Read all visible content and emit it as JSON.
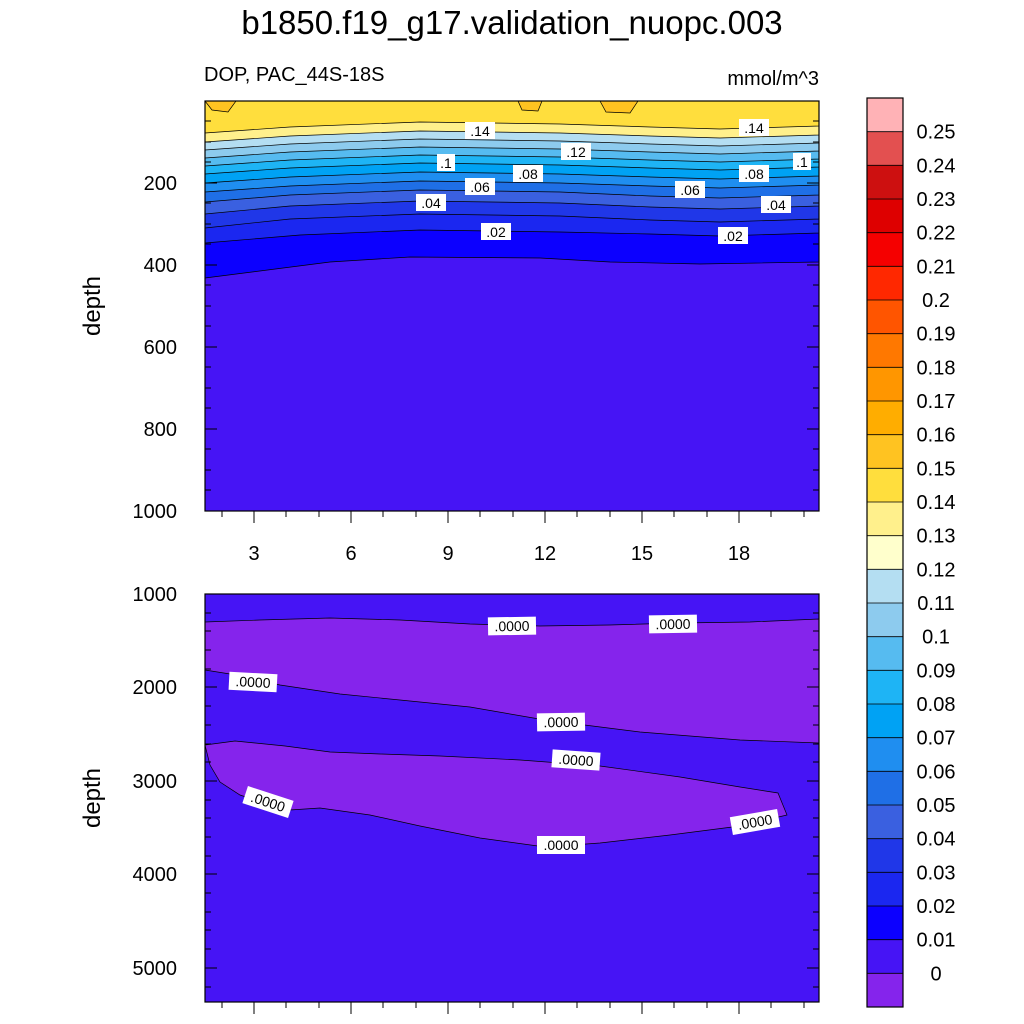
{
  "title": "b1850.f19_g17.validation_nuopc.003",
  "subtitle_left": "DOP, PAC_44S-18S",
  "subtitle_right": "mmol/m^3",
  "chart_data": [
    {
      "type": "heatmap",
      "panel": "upper",
      "xlabel": "",
      "ylabel": "depth",
      "x_ticks": [
        3,
        6,
        9,
        12,
        15,
        18
      ],
      "xlim": [
        1.5,
        20.5
      ],
      "y_ticks": [
        200,
        400,
        600,
        800,
        1000
      ],
      "ylim": [
        1000,
        0
      ],
      "contour_labels": [
        ".14",
        ".12",
        ".14",
        ".1",
        ".08",
        ".08",
        ".1",
        ".06",
        ".06",
        ".04",
        ".04",
        ".02",
        ".02"
      ],
      "depth_profile": [
        {
          "depth": 50,
          "value": 0.145
        },
        {
          "depth": 100,
          "value": 0.14
        },
        {
          "depth": 130,
          "value": 0.12
        },
        {
          "depth": 160,
          "value": 0.1
        },
        {
          "depth": 200,
          "value": 0.07
        },
        {
          "depth": 250,
          "value": 0.04
        },
        {
          "depth": 300,
          "value": 0.025
        },
        {
          "depth": 350,
          "value": 0.015
        },
        {
          "depth": 1000,
          "value": 0.005
        }
      ]
    },
    {
      "type": "heatmap",
      "panel": "lower",
      "xlabel": "",
      "ylabel": "depth",
      "y_ticks": [
        1000,
        2000,
        3000,
        4000,
        5000
      ],
      "ylim": [
        5375,
        1000
      ],
      "contour_labels": [
        ".0000",
        ".0000",
        ".0000",
        ".0000",
        ".0000",
        ".0000",
        ".0000",
        ".0000"
      ]
    }
  ],
  "colorbar": {
    "labels": [
      "0.25",
      "0.24",
      "0.23",
      "0.22",
      "0.21",
      "0.2",
      "0.19",
      "0.18",
      "0.17",
      "0.16",
      "0.15",
      "0.14",
      "0.13",
      "0.12",
      "0.11",
      "0.1",
      "0.09",
      "0.08",
      "0.07",
      "0.06",
      "0.05",
      "0.04",
      "0.03",
      "0.02",
      "0.01",
      "0"
    ],
    "colors": [
      "#ffb2b6",
      "#e35050",
      "#cd1010",
      "#de0000",
      "#f50000",
      "#ff2800",
      "#ff5500",
      "#ff7800",
      "#ff9600",
      "#ffad00",
      "#ffc321",
      "#ffde3d",
      "#fff08c",
      "#ffffcc",
      "#b4def2",
      "#8dcbee",
      "#56bbf0",
      "#1eb4f5",
      "#00a2f4",
      "#1f8ef0",
      "#1f6fe6",
      "#3a60e0",
      "#2037e8",
      "#1b27f0",
      "#0c00ff",
      "#4614f5",
      "#8524ec"
    ]
  }
}
